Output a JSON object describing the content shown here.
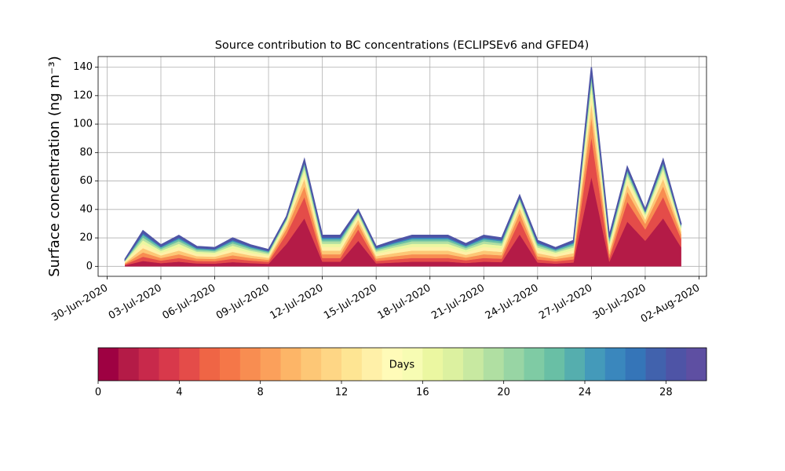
{
  "chart_data": {
    "type": "stacked_area",
    "title": "Source contribution to BC concentrations (ECLIPSEv6 and GFED4)",
    "ylabel": "Surface concentration (ng m⁻³)",
    "x": [
      "2020-07-01",
      "2020-07-02",
      "2020-07-03",
      "2020-07-04",
      "2020-07-05",
      "2020-07-06",
      "2020-07-07",
      "2020-07-08",
      "2020-07-09",
      "2020-07-10",
      "2020-07-11",
      "2020-07-12",
      "2020-07-13",
      "2020-07-14",
      "2020-07-15",
      "2020-07-16",
      "2020-07-17",
      "2020-07-18",
      "2020-07-19",
      "2020-07-20",
      "2020-07-21",
      "2020-07-22",
      "2020-07-23",
      "2020-07-24",
      "2020-07-25",
      "2020-07-26",
      "2020-07-27",
      "2020-07-28",
      "2020-07-29",
      "2020-07-30",
      "2020-07-31",
      "2020-08-01"
    ],
    "series": [
      {
        "color": "#b41b47",
        "values": [
          0.8,
          3.8,
          2.3,
          3.3,
          2.1,
          2,
          3,
          2.3,
          1.8,
          15.8,
          33.8,
          3.3,
          3.3,
          18,
          2.1,
          2.7,
          3.3,
          3.3,
          3.3,
          2.4,
          3.3,
          3,
          22.5,
          2.7,
          2,
          2.7,
          63,
          3.3,
          31.5,
          18,
          33.8,
          13.5
        ]
      },
      {
        "color": "#e44c49",
        "values": [
          0.6,
          3,
          1.8,
          2.6,
          1.7,
          1.6,
          2.4,
          1.8,
          1.4,
          7,
          15,
          2.6,
          2.6,
          8,
          1.7,
          2.2,
          2.6,
          2.6,
          2.6,
          1.9,
          2.6,
          2.4,
          10,
          2.2,
          1.6,
          2.2,
          28,
          2.6,
          14,
          8,
          15,
          6
        ]
      },
      {
        "color": "#f88d51",
        "values": [
          0.6,
          3,
          1.8,
          2.6,
          1.7,
          1.6,
          2.4,
          1.8,
          1.4,
          3.5,
          7.5,
          2.6,
          2.6,
          4,
          1.7,
          2.2,
          2.6,
          2.6,
          2.6,
          1.9,
          2.6,
          2.4,
          5,
          2.2,
          1.6,
          2.2,
          14,
          2.6,
          7,
          4,
          7.5,
          3
        ]
      },
      {
        "color": "#fdc776",
        "values": [
          0.6,
          3,
          1.8,
          2.6,
          1.7,
          1.6,
          2.4,
          1.8,
          1.4,
          2.5,
          5.3,
          2.6,
          2.6,
          2.8,
          1.7,
          2.2,
          2.6,
          2.6,
          2.6,
          1.9,
          2.6,
          2.4,
          3.5,
          2.2,
          1.6,
          2.2,
          9.8,
          2.6,
          4.9,
          2.8,
          5.3,
          2.1
        ]
      },
      {
        "color": "#fff0a8",
        "values": [
          0.6,
          3,
          1.8,
          2.6,
          1.7,
          1.6,
          2.4,
          1.8,
          1.4,
          1.8,
          3.8,
          2.6,
          2.6,
          2,
          1.7,
          2.2,
          2.6,
          2.6,
          2.6,
          1.9,
          2.6,
          2.4,
          2.5,
          2.2,
          1.6,
          2.2,
          7,
          2.6,
          3.5,
          2,
          3.8,
          1.5
        ]
      },
      {
        "color": "#ebf7a1",
        "values": [
          0.5,
          2.5,
          1.5,
          2.2,
          1.4,
          1.3,
          2,
          1.5,
          1.2,
          1.4,
          3,
          2.2,
          2.2,
          1.6,
          1.4,
          1.8,
          2.2,
          2.2,
          2.2,
          1.6,
          2.2,
          2,
          2,
          1.8,
          1.3,
          1.8,
          5.6,
          2.2,
          2.8,
          1.6,
          3,
          1.2
        ]
      },
      {
        "color": "#b0dfa2",
        "values": [
          0.4,
          2,
          1.2,
          1.8,
          1.1,
          1,
          1.6,
          1.2,
          1,
          1,
          2.3,
          1.8,
          1.8,
          1.2,
          1.1,
          1.4,
          1.8,
          1.8,
          1.8,
          1.3,
          1.8,
          1.6,
          1.5,
          1.4,
          1,
          1.4,
          4.2,
          1.8,
          2.1,
          1.2,
          2.3,
          0.9
        ]
      },
      {
        "color": "#69bfa5",
        "values": [
          0.4,
          1.8,
          1.1,
          1.5,
          1,
          0.9,
          1.4,
          1.1,
          0.8,
          0.7,
          1.5,
          1.5,
          1.5,
          0.8,
          1,
          1.3,
          1.5,
          1.5,
          1.5,
          1.1,
          1.5,
          1.4,
          1,
          1.3,
          0.9,
          1.3,
          2.8,
          1.5,
          1.4,
          0.8,
          1.5,
          0.6
        ]
      },
      {
        "color": "#3a87bd",
        "values": [
          0.3,
          1.5,
          0.9,
          1.3,
          0.8,
          0.8,
          1.2,
          0.9,
          0.7,
          0.7,
          1.5,
          1.3,
          1.3,
          0.8,
          0.8,
          1.1,
          1.3,
          1.3,
          1.3,
          1,
          1.3,
          1.2,
          1,
          1.1,
          0.8,
          1.1,
          2.8,
          1.3,
          1.4,
          0.8,
          1.5,
          0.6
        ]
      },
      {
        "color": "#4e54a6",
        "values": [
          0.3,
          1.5,
          0.9,
          1.3,
          0.8,
          0.8,
          1.2,
          0.9,
          0.7,
          0.7,
          1.5,
          1.3,
          1.3,
          0.8,
          0.8,
          1.1,
          1.3,
          1.3,
          1.3,
          1,
          1.3,
          1.2,
          1,
          1.1,
          0.8,
          1.1,
          2.8,
          1.3,
          1.4,
          0.8,
          1.5,
          0.6
        ]
      }
    ],
    "xlim": [
      "2020-06-29T12",
      "2020-08-02T10"
    ],
    "xticks": [
      {
        "value": "2020-06-30",
        "label": "30-Jun-2020"
      },
      {
        "value": "2020-07-03",
        "label": "03-Jul-2020"
      },
      {
        "value": "2020-07-06",
        "label": "06-Jul-2020"
      },
      {
        "value": "2020-07-09",
        "label": "09-Jul-2020"
      },
      {
        "value": "2020-07-12",
        "label": "12-Jul-2020"
      },
      {
        "value": "2020-07-15",
        "label": "15-Jul-2020"
      },
      {
        "value": "2020-07-18",
        "label": "18-Jul-2020"
      },
      {
        "value": "2020-07-21",
        "label": "21-Jul-2020"
      },
      {
        "value": "2020-07-24",
        "label": "24-Jul-2020"
      },
      {
        "value": "2020-07-27",
        "label": "27-Jul-2020"
      },
      {
        "value": "2020-07-30",
        "label": "30-Jul-2020"
      },
      {
        "value": "2020-08-02",
        "label": "02-Aug-2020"
      }
    ],
    "ylim": [
      -7,
      147.5
    ],
    "yticks": [
      0,
      20,
      40,
      60,
      80,
      100,
      120,
      140
    ],
    "grid": true,
    "colorbar": {
      "label": "Days",
      "lim": [
        0,
        30
      ],
      "ticks": [
        0,
        4,
        8,
        12,
        16,
        20,
        24,
        28
      ],
      "colors": [
        "#9e0142",
        "#b41b47",
        "#c8294b",
        "#d8394b",
        "#e44c49",
        "#ef6545",
        "#f57748",
        "#f88d51",
        "#fba05b",
        "#fdb567",
        "#fdc776",
        "#fed685",
        "#fee593",
        "#fff0a8",
        "#fffbb8",
        "#f7fcb3",
        "#ebf7a1",
        "#dcf1a0",
        "#c8e9a1",
        "#b0dfa2",
        "#98d5a4",
        "#7fcba4",
        "#69bfa5",
        "#55aeae",
        "#449aba",
        "#3a87bd",
        "#3575b8",
        "#4162ad",
        "#4e54a6",
        "#5e4fa2"
      ]
    }
  }
}
